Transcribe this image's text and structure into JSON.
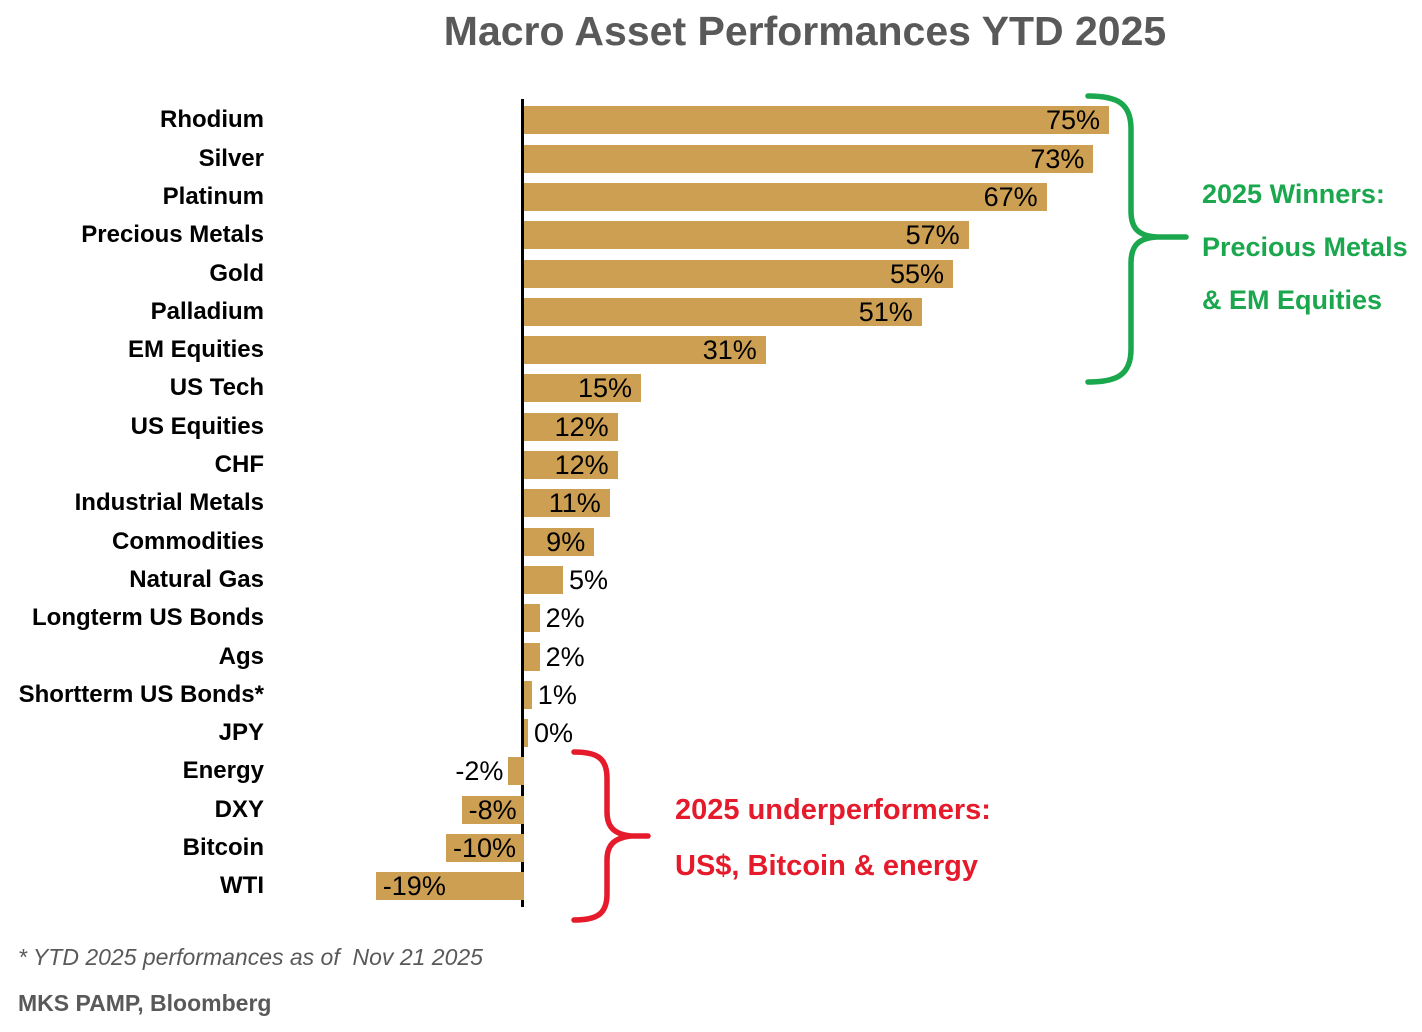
{
  "title": "Macro Asset Performances YTD 2025",
  "chart_data": {
    "type": "bar",
    "orientation": "horizontal",
    "title": "Macro Asset Performances YTD 2025",
    "xlabel": "",
    "ylabel": "",
    "xlim": [
      -33,
      78
    ],
    "grid": false,
    "bar_color": "#CC9F53",
    "categories": [
      "Rhodium",
      "Silver",
      "Platinum",
      "Precious Metals",
      "Gold",
      "Palladium",
      "EM Equities",
      "US Tech",
      "US Equities",
      "CHF",
      "Industrial Metals",
      "Commodities",
      "Natural Gas",
      "Longterm US Bonds",
      "Ags",
      "Shortterm US Bonds*",
      "JPY",
      "Energy",
      "DXY",
      "Bitcoin",
      "WTI"
    ],
    "values": [
      75,
      73,
      67,
      57,
      55,
      51,
      31,
      15,
      12,
      12,
      11,
      9,
      5,
      2,
      2,
      1,
      0,
      -2,
      -8,
      -10,
      -19
    ],
    "value_labels": [
      "75%",
      "73%",
      "67%",
      "57%",
      "55%",
      "51%",
      "31%",
      "15%",
      "12%",
      "12%",
      "11%",
      "9%",
      "5%",
      "2%",
      "2%",
      "1%",
      "0%",
      "-2%",
      "-8%",
      "-10%",
      "-19%"
    ]
  },
  "annotations": {
    "winners": {
      "color": "#1AA74D",
      "line1": "2025 Winners:",
      "line2": "Precious Metals",
      "line3": "& EM Equities"
    },
    "underperformers": {
      "color": "#E51A2B",
      "line1": "2025 underperformers:",
      "line2": "US$, Bitcoin & energy"
    }
  },
  "footnotes": {
    "note": "* YTD 2025 performances as of  Nov 21 2025",
    "source": "MKS PAMP, Bloomberg"
  }
}
